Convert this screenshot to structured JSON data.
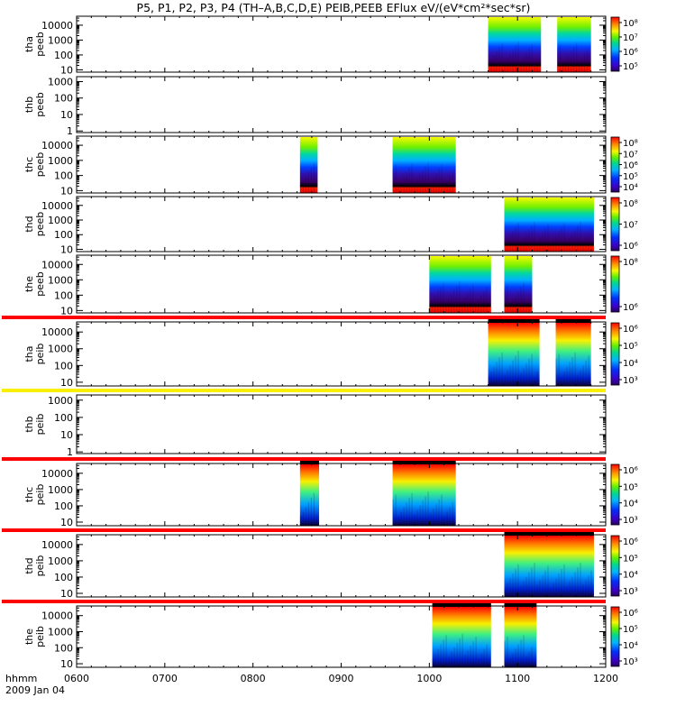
{
  "chart_data": {
    "type": "heatmap",
    "title": "P5, P1, P2, P3, P4 (TH–A,B,C,D,E) PEIB,PEEB EFlux eV/(eV*cm²*sec*sr)",
    "x_axis": {
      "label_line1": "hhmm",
      "label_line2": "2009 Jan 04",
      "range": [
        "0600",
        "1200"
      ],
      "ticks": [
        "0600",
        "0700",
        "0800",
        "0900",
        "1000",
        "1100",
        "1200"
      ]
    },
    "panels": [
      {
        "name": "tha",
        "name2": "peeb",
        "yticks": [
          "10",
          "100",
          "1000",
          "10000"
        ],
        "yrange": [
          7,
          40000
        ],
        "cbar_ticks": [
          "10⁵",
          "10⁶",
          "10⁷",
          "10⁸"
        ],
        "data_intervals": [
          [
            "1040",
            "1116"
          ],
          [
            "1127",
            "1150"
          ]
        ],
        "top_line": null
      },
      {
        "name": "thb",
        "name2": "peeb",
        "yticks": [
          "1",
          "10",
          "100",
          "1000"
        ],
        "yrange": [
          0.8,
          2000
        ],
        "cbar_ticks": [],
        "data_intervals": [],
        "top_line": null
      },
      {
        "name": "thc",
        "name2": "peeb",
        "yticks": [
          "10",
          "100",
          "1000",
          "10000"
        ],
        "yrange": [
          7,
          40000
        ],
        "cbar_ticks": [
          "10⁴",
          "10⁵",
          "10⁶",
          "10⁷",
          "10⁸"
        ],
        "data_intervals": [
          [
            "0832",
            "0844"
          ],
          [
            "0935",
            "1018"
          ]
        ],
        "top_line": null
      },
      {
        "name": "thd",
        "name2": "peeb",
        "yticks": [
          "10",
          "100",
          "1000",
          "10000"
        ],
        "yrange": [
          7,
          40000
        ],
        "cbar_ticks": [
          "10⁶",
          "10⁷",
          "10⁸"
        ],
        "data_intervals": [
          [
            "1051",
            "1152"
          ]
        ],
        "top_line": null
      },
      {
        "name": "the",
        "name2": "peeb",
        "yticks": [
          "10",
          "100",
          "1000",
          "10000"
        ],
        "yrange": [
          7,
          40000
        ],
        "cbar_ticks": [
          "10⁶",
          "10⁸"
        ],
        "data_intervals": [
          [
            "1000",
            "1042"
          ],
          [
            "1051",
            "1110"
          ]
        ],
        "top_line": null
      },
      {
        "name": "tha",
        "name2": "peib",
        "yticks": [
          "10",
          "100",
          "1000",
          "10000"
        ],
        "yrange": [
          6,
          40000
        ],
        "cbar_ticks": [
          "10³",
          "10⁴",
          "10⁵",
          "10⁶"
        ],
        "data_intervals": [
          [
            "1040",
            "1115"
          ],
          [
            "1126",
            "1150"
          ]
        ],
        "top_line": "red"
      },
      {
        "name": "thb",
        "name2": "peib",
        "yticks": [
          "1",
          "10",
          "100",
          "1000"
        ],
        "yrange": [
          0.8,
          2000
        ],
        "cbar_ticks": [],
        "data_intervals": [],
        "top_line": "yellow"
      },
      {
        "name": "thc",
        "name2": "peib",
        "yticks": [
          "10",
          "100",
          "1000",
          "10000"
        ],
        "yrange": [
          6,
          40000
        ],
        "cbar_ticks": [
          "10³",
          "10⁴",
          "10⁵",
          "10⁶"
        ],
        "data_intervals": [
          [
            "0832",
            "0845"
          ],
          [
            "0935",
            "1018"
          ]
        ],
        "top_line": "red"
      },
      {
        "name": "thd",
        "name2": "peib",
        "yticks": [
          "10",
          "100",
          "1000",
          "10000"
        ],
        "yrange": [
          6,
          40000
        ],
        "cbar_ticks": [
          "10³",
          "10⁴",
          "10⁵",
          "10⁶"
        ],
        "data_intervals": [
          [
            "1051",
            "1152"
          ]
        ],
        "top_line": "red"
      },
      {
        "name": "the",
        "name2": "peib",
        "yticks": [
          "10",
          "100",
          "1000",
          "10000"
        ],
        "yrange": [
          6,
          40000
        ],
        "cbar_ticks": [
          "10³",
          "10⁴",
          "10⁵",
          "10⁶"
        ],
        "data_intervals": [
          [
            "1002",
            "1042"
          ],
          [
            "1051",
            "1113"
          ]
        ],
        "top_line": "red"
      }
    ]
  }
}
